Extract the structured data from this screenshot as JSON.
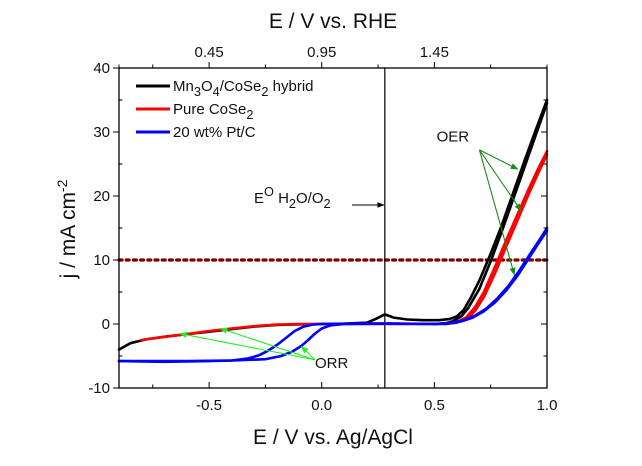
{
  "chart_data": {
    "type": "line",
    "title": "",
    "xlabel": "E / V vs. Ag/AgCl",
    "x2label": "E / V vs. RHE",
    "ylabel": "j / mA cm-2",
    "xlim": [
      -0.9,
      1.0
    ],
    "ylim": [
      -10,
      40
    ],
    "x_ticks": [
      -0.5,
      0.0,
      0.5,
      1.0
    ],
    "x_tick_labels": [
      "-0.5",
      "0.0",
      "0.5",
      "1.0"
    ],
    "x_minor_ticks": [
      -0.75,
      -0.25,
      0.25,
      0.75
    ],
    "x2_ticks_at_x": [
      -0.5,
      0.0,
      0.5
    ],
    "x2_tick_labels": [
      "0.45",
      "0.95",
      "1.45"
    ],
    "x2_minor_ticks_at_x": [
      -0.75,
      -0.25,
      0.25,
      0.75
    ],
    "y_ticks": [
      -10,
      0,
      10,
      20,
      30,
      40
    ],
    "y_tick_labels": [
      "-10",
      "0",
      "10",
      "20",
      "30",
      "40"
    ],
    "y_minor_ticks": [
      -5,
      5,
      15,
      25,
      35
    ],
    "grid": false,
    "legend_position": "top-left",
    "series": [
      {
        "name": "Mn3O4/CoSe2 hybrid",
        "legend": {
          "base": "Mn",
          "parts": [
            [
              "Mn",
              ""
            ],
            [
              "3",
              "sub"
            ],
            [
              "O",
              ""
            ],
            [
              "4",
              "sub"
            ],
            [
              "/CoSe",
              ""
            ],
            [
              "2",
              "sub"
            ],
            [
              " hybrid",
              ""
            ]
          ]
        },
        "color": "#000000",
        "branches": [
          {
            "x": [
              -0.9,
              -0.85,
              -0.78,
              -0.7,
              -0.6,
              -0.5,
              -0.4,
              -0.3,
              -0.2,
              -0.1,
              0.0,
              0.1,
              0.2,
              0.24,
              0.28,
              0.32,
              0.38,
              0.45,
              0.52,
              0.57,
              0.6,
              0.63,
              0.66,
              0.7,
              0.75,
              0.8,
              0.85,
              0.9,
              0.95,
              1.0
            ],
            "y": [
              -4.0,
              -3.0,
              -2.4,
              -2.0,
              -1.6,
              -1.2,
              -0.8,
              -0.4,
              -0.15,
              -0.05,
              0.0,
              0.05,
              0.2,
              0.8,
              1.5,
              1.0,
              0.7,
              0.6,
              0.6,
              0.8,
              1.2,
              2.2,
              4.0,
              6.8,
              11.0,
              15.5,
              20.5,
              25.5,
              30.3,
              35.0
            ]
          },
          {
            "x": [
              0.5,
              0.55,
              0.58,
              0.62,
              0.65,
              0.7,
              0.75,
              0.8,
              0.85,
              0.9,
              0.95,
              1.0
            ],
            "y": [
              0.0,
              0.1,
              0.4,
              1.2,
              2.5,
              5.5,
              9.8,
              14.5,
              19.5,
              24.5,
              29.5,
              34.5
            ]
          }
        ]
      },
      {
        "name": "Pure CoSe2",
        "legend": {
          "parts": [
            [
              "Pure CoSe",
              ""
            ],
            [
              "2",
              "sub"
            ]
          ]
        },
        "color": "#ff0000",
        "branches": [
          {
            "x": [
              -0.8,
              -0.7,
              -0.6,
              -0.5,
              -0.4,
              -0.3,
              -0.2,
              -0.1,
              0.0,
              0.2,
              0.4,
              0.55,
              0.6,
              0.64,
              0.68,
              0.72,
              0.77,
              0.82,
              0.87,
              0.92,
              0.96,
              1.0
            ],
            "y": [
              -2.5,
              -2.0,
              -1.6,
              -1.1,
              -0.7,
              -0.35,
              -0.1,
              0.0,
              0.0,
              0.0,
              0.0,
              0.05,
              0.3,
              1.0,
              2.6,
              5.0,
              9.0,
              13.2,
              17.2,
              21.2,
              24.2,
              27.0
            ]
          },
          {
            "x": [
              0.55,
              0.6,
              0.64,
              0.68,
              0.72,
              0.77,
              0.82,
              0.87,
              0.92,
              0.96,
              1.0
            ],
            "y": [
              0.0,
              0.2,
              0.7,
              2.0,
              4.2,
              8.0,
              12.2,
              16.3,
              20.4,
              23.5,
              26.5
            ]
          }
        ]
      },
      {
        "name": "20 wt% Pt/C",
        "legend": {
          "parts": [
            [
              "20 wt% Pt/C",
              ""
            ]
          ]
        },
        "color": "#0000ff",
        "branches": [
          {
            "x": [
              -0.9,
              -0.7,
              -0.5,
              -0.4,
              -0.33,
              -0.28,
              -0.24,
              -0.2,
              -0.16,
              -0.12,
              -0.08,
              -0.04,
              0.0,
              0.1,
              0.3,
              0.5,
              0.58,
              0.63,
              0.68,
              0.73,
              0.78,
              0.83,
              0.88,
              0.93,
              0.97,
              1.0
            ],
            "y": [
              -5.8,
              -5.9,
              -5.8,
              -5.7,
              -5.4,
              -4.9,
              -4.2,
              -3.3,
              -2.2,
              -1.1,
              -0.4,
              -0.1,
              0.0,
              0.05,
              0.1,
              0.0,
              0.2,
              0.6,
              1.3,
              2.4,
              4.0,
              6.0,
              8.5,
              11.2,
              13.3,
              15.0
            ]
          },
          {
            "x": [
              -0.9,
              -0.6,
              -0.4,
              -0.25,
              -0.18,
              -0.13,
              -0.09,
              -0.06,
              -0.03,
              0.0,
              0.04,
              0.1,
              0.3,
              0.55,
              0.62,
              0.67,
              0.72,
              0.77,
              0.82,
              0.87,
              0.92,
              0.96,
              1.0
            ],
            "y": [
              -5.8,
              -5.8,
              -5.7,
              -5.5,
              -5.0,
              -4.3,
              -3.4,
              -2.5,
              -1.5,
              -0.7,
              -0.2,
              0.0,
              0.05,
              0.0,
              0.4,
              1.0,
              2.0,
              3.4,
              5.3,
              7.6,
              10.3,
              12.5,
              14.6
            ]
          }
        ]
      }
    ],
    "reference_lines": [
      {
        "type": "horizontal",
        "y": 10,
        "color": "#7a0000",
        "style": "dotted"
      },
      {
        "type": "vertical",
        "x": 0.28,
        "color": "#000000",
        "style": "solid"
      }
    ],
    "annotations": [
      {
        "name": "eo-label",
        "parts": [
          [
            "E",
            ""
          ],
          [
            "O",
            "sup"
          ],
          [
            "  H",
            ""
          ],
          [
            "2",
            "sub"
          ],
          [
            "O/O",
            ""
          ],
          [
            "2",
            "sub"
          ]
        ],
        "at": [
          0.01,
          20.5
        ],
        "arrow_to": [
          0.28,
          18.6
        ],
        "color": "#000000"
      },
      {
        "name": "oer-label",
        "text": "OER",
        "at": [
          0.51,
          28.5
        ],
        "color": "#1a8a1a",
        "arrow_from": [
          0.7,
          27.2
        ],
        "arrows_to": [
          [
            0.87,
            24.2
          ],
          [
            0.885,
            17.7
          ],
          [
            0.855,
            7.7
          ]
        ]
      },
      {
        "name": "orr-label",
        "text": "ORR",
        "at": [
          -0.03,
          -6.9
        ],
        "color": "#22ee22",
        "arrow_from": [
          -0.03,
          -5.6
        ],
        "arrows_to": [
          [
            -0.63,
            -1.5
          ],
          [
            -0.45,
            -0.7
          ],
          [
            -0.09,
            -3.5
          ]
        ]
      }
    ]
  }
}
